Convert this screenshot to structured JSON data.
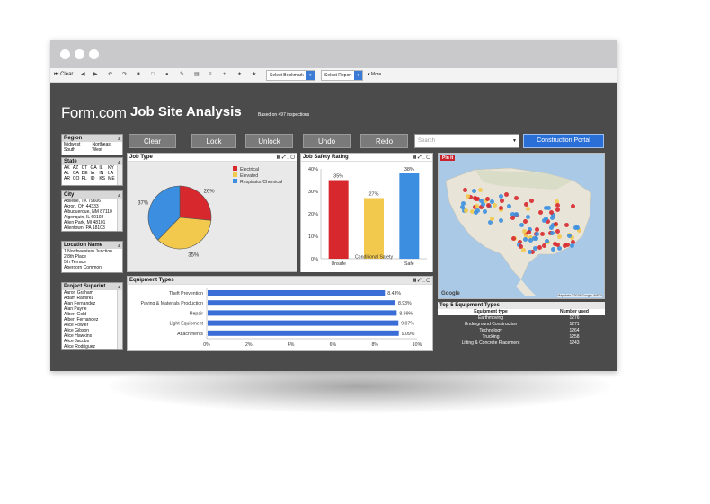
{
  "toolbar": {
    "clear_label": "Clear",
    "bookmark_label": "Select Bookmark",
    "report_label": "Select Report",
    "more_label": "▾ More"
  },
  "header": {
    "logo": "Form.com",
    "title": "Job Site Analysis",
    "subtitle": "Based on 497 inspections"
  },
  "filters": {
    "region": {
      "title": "Region",
      "items": [
        "Midwest",
        "Northeast",
        "South",
        "West"
      ]
    },
    "state": {
      "title": "State",
      "items": [
        "AK",
        "AZ",
        "CT",
        "GA",
        "IL",
        "KY",
        "MD",
        "AL",
        "CA",
        "DE",
        "IA",
        "IN",
        "LA",
        "MA",
        "AR",
        "CO",
        "FL",
        "ID",
        "KS",
        "MA",
        "ME"
      ]
    },
    "city": {
      "title": "City",
      "items": [
        "Abilene, TX 79606",
        "Akron, OH 44333",
        "Albuquerque, NM 87110",
        "Algonquin, IL 60102",
        "Allen Park, MI 48101",
        "Allentown, PA 18103"
      ]
    },
    "location": {
      "title": "Location Name",
      "items": [
        "1 Northwestern Junction",
        "2 8th Place",
        "5th Terrace",
        "Abercorn Common"
      ]
    },
    "supervisor": {
      "title": "Project Superint...",
      "items": [
        "Aaron Graham",
        "Adam Ramirez",
        "Alan Fernandez",
        "Alan Payne",
        "Albert Gold",
        "Albert Fernandez",
        "Alice Fowler",
        "Alice Gibson",
        "Alice Hawkins",
        "Alice Jacobs",
        "Alice Rodriguez"
      ]
    }
  },
  "buttons": {
    "clear": "Clear",
    "lock": "Lock",
    "unlock": "Unlock",
    "undo": "Undo",
    "redo": "Redo",
    "portal": "Construction Portal"
  },
  "search": {
    "placeholder": "Search"
  },
  "panels": {
    "job_type": "Job Type",
    "safety": "Job Safety Rating",
    "equipment": "Equipment Types",
    "map_badge": "Pin it",
    "map_google": "Google",
    "map_credit": "Map data ©2015 Google, INEGI"
  },
  "colors": {
    "red": "#d7282e",
    "yellow": "#f2c94c",
    "blue": "#3c8fe0",
    "bar": "#3a6ed6",
    "accent": "#2a6fd6"
  },
  "chart_data": [
    {
      "type": "pie",
      "title": "Job Type",
      "categories": [
        "Electrical",
        "Elevated",
        "Respirator/Chemical"
      ],
      "values": [
        26,
        35,
        37
      ],
      "labels": [
        "26%",
        "35%",
        "37%"
      ],
      "legend": "top-right"
    },
    {
      "type": "bar",
      "title": "Job Safety Rating",
      "categories": [
        "Unsafe",
        "Conditional Safety",
        "Safe"
      ],
      "values": [
        35,
        27,
        38
      ],
      "labels": [
        "35%",
        "27%",
        "38%"
      ],
      "ylim": [
        0,
        40
      ],
      "yticks": [
        "0%",
        "10%",
        "20%",
        "30%",
        "40%"
      ]
    },
    {
      "type": "bar",
      "orientation": "horizontal",
      "title": "Equipment Types",
      "categories": [
        "Theft Prevention",
        "Paving & Materials Production",
        "Repair",
        "Light Equipment",
        "Attachments"
      ],
      "values": [
        8.43,
        8.93,
        8.99,
        9.07,
        9.09
      ],
      "labels": [
        "8.43%",
        "8.93%",
        "8.99%",
        "9.07%",
        "9.09%"
      ],
      "xlim": [
        0,
        10
      ],
      "xticks": [
        "0%",
        "2%",
        "4%",
        "6%",
        "8%",
        "10%"
      ]
    },
    {
      "type": "table",
      "title": "Top 5 Equipment Types",
      "columns": [
        "Equipment type",
        "Number used"
      ],
      "rows": [
        [
          "Earthmoving",
          "1276"
        ],
        [
          "Underground Construction",
          "1271"
        ],
        [
          "Technology",
          "1264"
        ],
        [
          "Trucking",
          "1258"
        ],
        [
          "Lifting & Concrete Placement",
          "1243"
        ]
      ]
    }
  ]
}
